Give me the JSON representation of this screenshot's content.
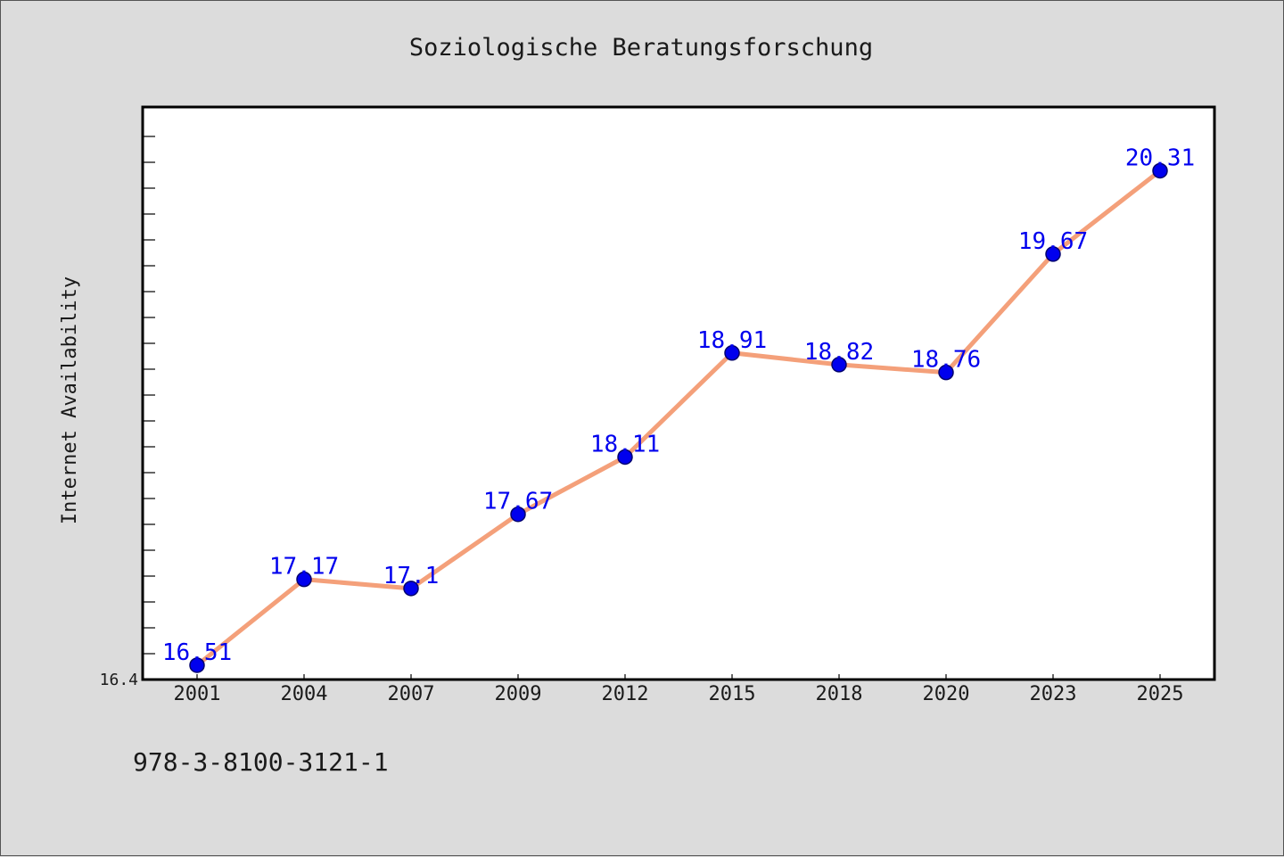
{
  "chart_data": {
    "type": "line",
    "title": "Soziologische Beratungsforschung",
    "xlabel": "",
    "ylabel": "Internet Availability",
    "categories": [
      "2001",
      "2004",
      "2007",
      "2009",
      "2012",
      "2015",
      "2018",
      "2020",
      "2023",
      "2025"
    ],
    "series": [
      {
        "values": [
          16.51,
          17.17,
          17.1,
          17.67,
          18.11,
          18.91,
          18.82,
          18.76,
          19.67,
          20.31
        ]
      }
    ],
    "data_labels": [
      "16.51",
      "17.17",
      "17.1",
      "17.67",
      "18.11",
      "18.91",
      "18.82",
      "18.76",
      "19.67",
      "20.31"
    ],
    "ylim": [
      16.4,
      20.8
    ],
    "ytick_labels": [
      "16.4"
    ],
    "grid": false,
    "colors": {
      "line": "#f4a07a",
      "marker": "#0000ee",
      "marker_edge": "#00006e",
      "data_label": "#0000ee",
      "background": "#dcdcdc",
      "plot_background": "#ffffff"
    }
  },
  "footnote": "978-3-8100-3121-1"
}
